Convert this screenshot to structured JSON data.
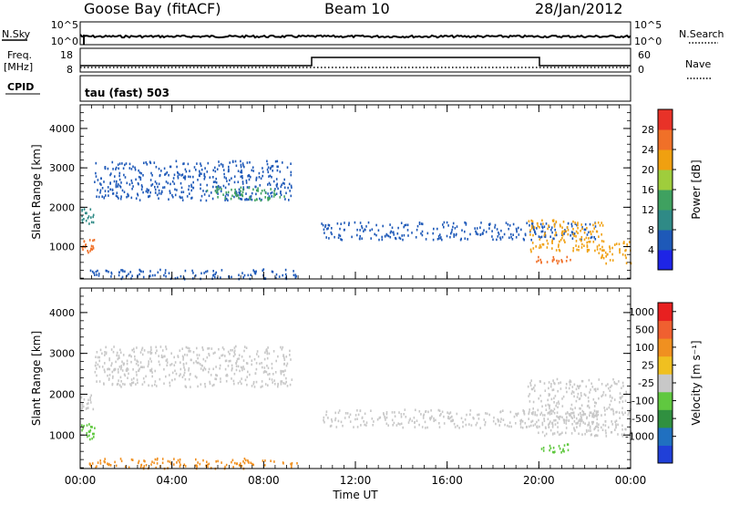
{
  "header": {
    "station": "Goose Bay (fitACF)",
    "beam": "Beam 10",
    "date": "28/Jan/2012"
  },
  "top_panels": {
    "nsky_label": "N.Sky",
    "nsky_ticks": [
      "10^5",
      "10^0"
    ],
    "nsearch_label": "N.Search",
    "nsearch_ticks": [
      "10^5",
      "10^0"
    ],
    "freq_label_1": "Freq.",
    "freq_label_2": "[MHz]",
    "freq_ticks": [
      "18",
      "8"
    ],
    "nave_label": "Nave",
    "nave_ticks": [
      "60",
      "0"
    ],
    "cpid_label": "CPID",
    "cpid_value": "tau (fast) 503"
  },
  "chart_data": [
    {
      "type": "heatmap",
      "name": "power",
      "ylabel": "Slant Range [km]",
      "ylim": [
        180,
        4600
      ],
      "yticks": [
        "1000",
        "2000",
        "3000",
        "4000"
      ],
      "xlim": [
        0,
        24
      ],
      "xticks": [
        "00:00",
        "04:00",
        "08:00",
        "12:00",
        "16:00",
        "20:00",
        "00:00"
      ],
      "colorbar": {
        "label": "Power [dB]",
        "ticks": [
          "4",
          "8",
          "12",
          "16",
          "20",
          "24",
          "28"
        ],
        "colors": [
          "#1e24e6",
          "#1e59b8",
          "#2f8a86",
          "#3fa160",
          "#9fcd3c",
          "#f0a010",
          "#f07028",
          "#e83228"
        ]
      },
      "regions": [
        {
          "t0": 0.0,
          "t1": 0.6,
          "r0": 1600,
          "r1": 2000,
          "color": "#2f8a86"
        },
        {
          "t0": 0.0,
          "t1": 0.6,
          "r0": 850,
          "r1": 1200,
          "color": "#f07028"
        },
        {
          "t0": 0.6,
          "t1": 9.2,
          "r0": 2200,
          "r1": 3200,
          "color": "#1e59b8"
        },
        {
          "t0": 5.5,
          "t1": 9.0,
          "r0": 2200,
          "r1": 2550,
          "color": "#3fa160"
        },
        {
          "t0": 10.5,
          "t1": 22.5,
          "r0": 1200,
          "r1": 1650,
          "color": "#1e59b8"
        },
        {
          "t0": 19.5,
          "t1": 22.8,
          "r0": 900,
          "r1": 1700,
          "color": "#f0a010"
        },
        {
          "t0": 19.8,
          "t1": 21.5,
          "r0": 600,
          "r1": 800,
          "color": "#f07028"
        },
        {
          "t0": 22.5,
          "t1": 24.0,
          "r0": 600,
          "r1": 1200,
          "color": "#f0a010"
        },
        {
          "t0": 0.3,
          "t1": 9.5,
          "r0": 200,
          "r1": 450,
          "color": "#1e59b8"
        }
      ]
    },
    {
      "type": "heatmap",
      "name": "velocity",
      "ylabel": "Slant Range [km]",
      "ylim": [
        180,
        4600
      ],
      "yticks": [
        "1000",
        "2000",
        "3000",
        "4000"
      ],
      "xlim": [
        0,
        24
      ],
      "xticks": [
        "00:00",
        "04:00",
        "08:00",
        "12:00",
        "16:00",
        "20:00",
        "00:00"
      ],
      "xlabel": "Time UT",
      "colorbar": {
        "label": "Velocity [m s⁻¹]",
        "ticks": [
          "1000",
          "500",
          "100",
          "25",
          "-25",
          "-100",
          "-500",
          "-1000"
        ],
        "colors": [
          "#2040d8",
          "#2070c0",
          "#309040",
          "#60c840",
          "#c8c8c8",
          "#f0c020",
          "#f09020",
          "#f06030",
          "#e82020"
        ]
      },
      "regions": [
        {
          "t0": 0.0,
          "t1": 0.6,
          "r0": 1600,
          "r1": 2000,
          "color": "#c8c8c8"
        },
        {
          "t0": 0.0,
          "t1": 0.6,
          "r0": 850,
          "r1": 1300,
          "color": "#60c840"
        },
        {
          "t0": 0.6,
          "t1": 9.2,
          "r0": 2200,
          "r1": 3200,
          "color": "#c8c8c8"
        },
        {
          "t0": 10.5,
          "t1": 22.5,
          "r0": 1200,
          "r1": 1650,
          "color": "#c8c8c8"
        },
        {
          "t0": 19.5,
          "t1": 24.0,
          "r0": 1000,
          "r1": 2400,
          "color": "#c8c8c8"
        },
        {
          "t0": 19.8,
          "t1": 21.5,
          "r0": 600,
          "r1": 800,
          "color": "#60c840"
        },
        {
          "t0": 0.3,
          "t1": 9.5,
          "r0": 200,
          "r1": 450,
          "color": "#f09020"
        }
      ]
    }
  ]
}
